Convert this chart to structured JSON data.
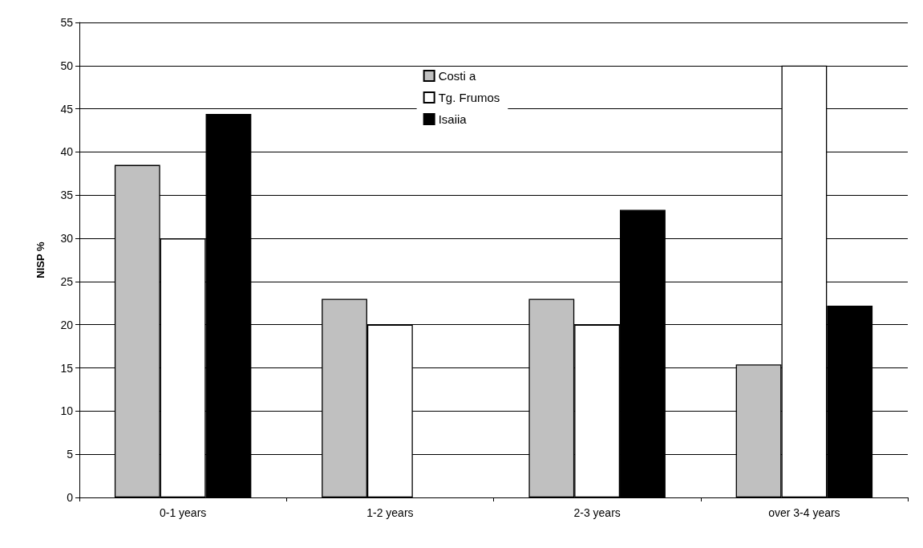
{
  "chart_data": {
    "type": "bar",
    "ylabel": "NISP %",
    "categories": [
      "0-1 years",
      "1-2 years",
      "2-3 years",
      "over 3-4 years"
    ],
    "series": [
      {
        "name": "Costi a",
        "color": "#c0c0c0",
        "values": [
          38.5,
          23,
          23,
          15.4
        ]
      },
      {
        "name": "Tg. Frumos",
        "color": "#ffffff",
        "values": [
          30,
          20,
          20,
          50
        ]
      },
      {
        "name": "Isaiia",
        "color": "#000000",
        "values": [
          44.4,
          null,
          33.3,
          22.2
        ]
      }
    ],
    "ylim": [
      0,
      55
    ],
    "yticks": [
      0,
      5,
      10,
      15,
      20,
      25,
      30,
      35,
      40,
      45,
      50,
      55
    ],
    "grid": "y",
    "legend": "top"
  }
}
